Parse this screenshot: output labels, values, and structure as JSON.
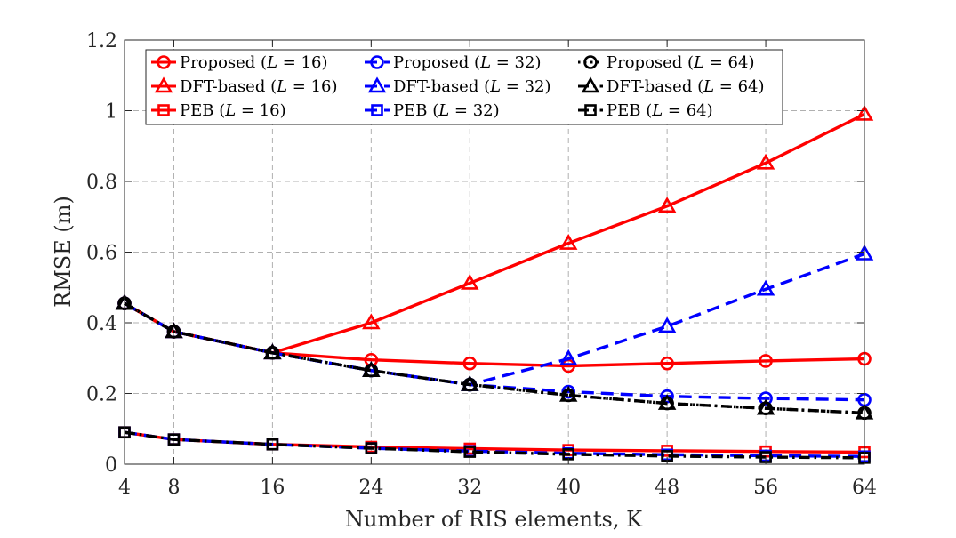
{
  "chart_data": {
    "type": "line",
    "title": "",
    "xlabel": "Number of RIS elements, K",
    "ylabel": "RMSE (m)",
    "x": [
      4,
      8,
      16,
      24,
      32,
      40,
      48,
      56,
      64
    ],
    "xlim": [
      4,
      64
    ],
    "ylim": [
      0,
      1.2
    ],
    "xticks": [
      4,
      8,
      16,
      24,
      32,
      40,
      48,
      56,
      64
    ],
    "yticks": [
      0,
      0.2,
      0.4,
      0.6,
      0.8,
      1,
      1.2
    ],
    "ytick_labels": [
      "0",
      "0.2",
      "0.4",
      "0.6",
      "0.8",
      "1",
      "1.2"
    ],
    "grid": true,
    "legend_position": "top",
    "colors": {
      "L16": "#ff0000",
      "L32": "#0000ff",
      "L64": "#000000",
      "grid": "#b0b0b0"
    },
    "series": [
      {
        "name": "Proposed (L = 16)",
        "label_prefix": "Proposed (",
        "label_suffix": ")",
        "L": "16",
        "color": "L16",
        "dash": "solid",
        "marker": "circle",
        "values": [
          0.455,
          0.375,
          0.315,
          0.295,
          0.285,
          0.278,
          0.285,
          0.292,
          0.298
        ]
      },
      {
        "name": "DFT-based (L = 16)",
        "label_prefix": "DFT-based (",
        "label_suffix": ")",
        "L": "16",
        "color": "L16",
        "dash": "solid",
        "marker": "triangle",
        "values": [
          0.455,
          0.375,
          0.315,
          0.4,
          0.512,
          0.625,
          0.73,
          0.852,
          0.99
        ]
      },
      {
        "name": "PEB (L = 16)",
        "label_prefix": "PEB (",
        "label_suffix": ")",
        "L": "16",
        "color": "L16",
        "dash": "solid",
        "marker": "square",
        "values": [
          0.09,
          0.07,
          0.056,
          0.049,
          0.044,
          0.04,
          0.038,
          0.036,
          0.034
        ]
      },
      {
        "name": "Proposed (L = 32)",
        "label_prefix": "Proposed (",
        "label_suffix": ")",
        "L": "32",
        "color": "L32",
        "dash": "dashed",
        "marker": "circle",
        "values": [
          0.455,
          0.375,
          0.315,
          0.265,
          0.225,
          0.205,
          0.192,
          0.186,
          0.182
        ]
      },
      {
        "name": "DFT-based (L = 32)",
        "label_prefix": "DFT-based (",
        "label_suffix": ")",
        "L": "32",
        "color": "L32",
        "dash": "dashed",
        "marker": "triangle",
        "values": [
          0.455,
          0.375,
          0.315,
          0.265,
          0.225,
          0.298,
          0.39,
          0.495,
          0.595
        ]
      },
      {
        "name": "PEB (L = 32)",
        "label_prefix": "PEB (",
        "label_suffix": ")",
        "L": "32",
        "color": "L32",
        "dash": "dashed",
        "marker": "square",
        "values": [
          0.09,
          0.07,
          0.056,
          0.045,
          0.037,
          0.031,
          0.027,
          0.024,
          0.022
        ]
      },
      {
        "name": "Proposed (L = 64)",
        "label_prefix": "Proposed (",
        "label_suffix": ")",
        "L": "64",
        "color": "L64",
        "dash": "dotted",
        "marker": "circle",
        "values": [
          0.455,
          0.375,
          0.315,
          0.265,
          0.225,
          0.195,
          0.172,
          0.158,
          0.145
        ]
      },
      {
        "name": "DFT-based (L = 64)",
        "label_prefix": "DFT-based (",
        "label_suffix": ")",
        "L": "64",
        "color": "L64",
        "dash": "dashdot",
        "marker": "triangle",
        "values": [
          0.455,
          0.375,
          0.315,
          0.265,
          0.225,
          0.195,
          0.172,
          0.158,
          0.145
        ]
      },
      {
        "name": "PEB (L = 64)",
        "label_prefix": "PEB (",
        "label_suffix": ")",
        "L": "64",
        "color": "L64",
        "dash": "dashdot",
        "marker": "square",
        "values": [
          0.09,
          0.07,
          0.056,
          0.045,
          0.035,
          0.028,
          0.023,
          0.02,
          0.018
        ]
      }
    ]
  }
}
